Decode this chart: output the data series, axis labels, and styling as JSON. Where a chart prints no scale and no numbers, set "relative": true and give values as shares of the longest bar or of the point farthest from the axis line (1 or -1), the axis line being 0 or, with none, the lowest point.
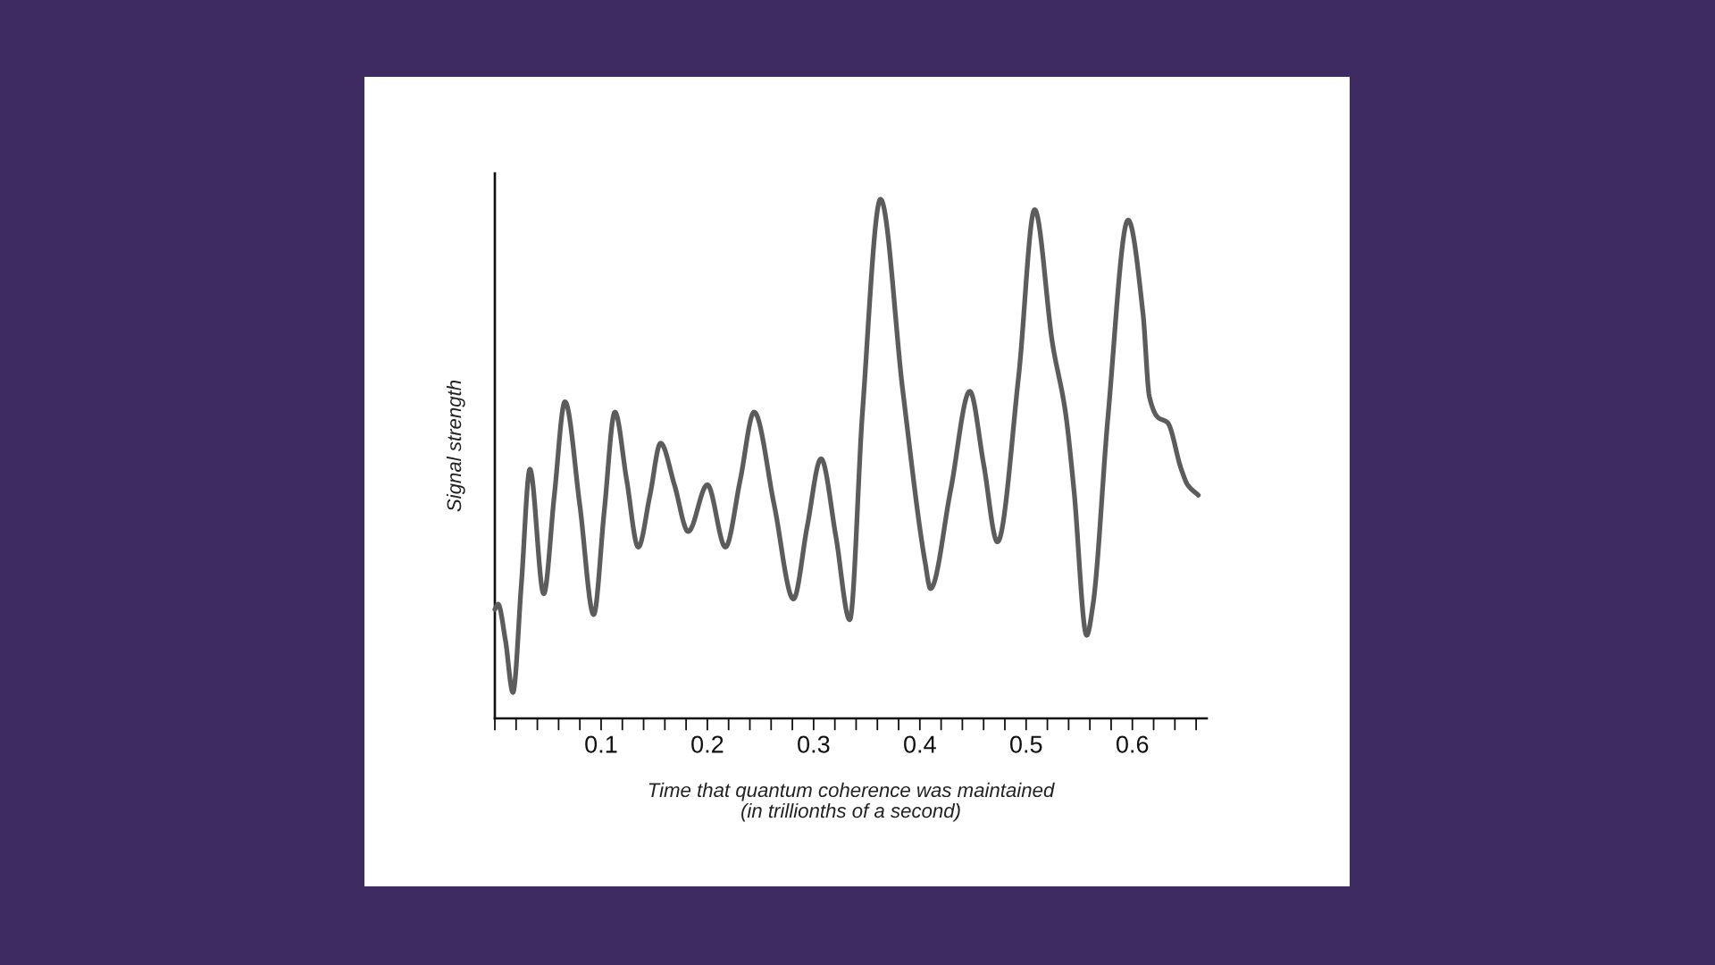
{
  "chart_data": {
    "type": "line",
    "relative": true,
    "xlabel": "Time that quantum coherence was maintained\n(in trillionths of a second)",
    "ylabel": "Signal strength",
    "x": [
      0,
      0.003,
      0.01,
      0.017,
      0.025,
      0.033,
      0.046,
      0.056,
      0.066,
      0.08,
      0.093,
      0.103,
      0.113,
      0.124,
      0.135,
      0.146,
      0.156,
      0.169,
      0.182,
      0.2,
      0.217,
      0.231,
      0.244,
      0.263,
      0.281,
      0.294,
      0.307,
      0.321,
      0.334,
      0.346,
      0.363,
      0.384,
      0.405,
      0.41,
      0.429,
      0.447,
      0.46,
      0.473,
      0.493,
      0.508,
      0.525,
      0.537,
      0.545,
      0.557,
      0.563,
      0.577,
      0.596,
      0.61,
      0.616,
      0.624,
      0.633,
      0.646,
      0.652,
      0.662
    ],
    "series": [
      {
        "color": "#5c5c5c",
        "values": [
          0.21,
          0.22,
          0.15,
          0.05,
          0.26,
          0.48,
          0.24,
          0.43,
          0.61,
          0.41,
          0.2,
          0.4,
          0.59,
          0.46,
          0.33,
          0.43,
          0.53,
          0.45,
          0.36,
          0.45,
          0.33,
          0.46,
          0.59,
          0.41,
          0.23,
          0.37,
          0.5,
          0.35,
          0.19,
          0.59,
          1.0,
          0.63,
          0.3,
          0.25,
          0.44,
          0.63,
          0.49,
          0.34,
          0.66,
          0.98,
          0.72,
          0.59,
          0.44,
          0.16,
          0.22,
          0.58,
          0.96,
          0.78,
          0.62,
          0.58,
          0.57,
          0.48,
          0.45,
          0.43
        ]
      }
    ],
    "xlim": [
      0,
      0.67
    ],
    "xticks": [
      {
        "value": 0,
        "label": null
      },
      {
        "value": 0.02,
        "label": null
      },
      {
        "value": 0.04,
        "label": null
      },
      {
        "value": 0.06,
        "label": null
      },
      {
        "value": 0.08,
        "label": null
      },
      0.1,
      {
        "value": 0.12,
        "label": null
      },
      {
        "value": 0.14,
        "label": null
      },
      {
        "value": 0.16,
        "label": null
      },
      {
        "value": 0.18,
        "label": null
      },
      0.2,
      {
        "value": 0.22,
        "label": null
      },
      {
        "value": 0.24,
        "label": null
      },
      {
        "value": 0.26,
        "label": null
      },
      {
        "value": 0.28,
        "label": null
      },
      0.3,
      {
        "value": 0.32,
        "label": null
      },
      {
        "value": 0.34,
        "label": null
      },
      {
        "value": 0.36,
        "label": null
      },
      {
        "value": 0.38,
        "label": null
      },
      0.4,
      {
        "value": 0.42,
        "label": null
      },
      {
        "value": 0.44,
        "label": null
      },
      {
        "value": 0.46,
        "label": null
      },
      {
        "value": 0.48,
        "label": null
      },
      0.5,
      {
        "value": 0.52,
        "label": null
      },
      {
        "value": 0.54,
        "label": null
      },
      {
        "value": 0.56,
        "label": null
      },
      {
        "value": 0.58,
        "label": null
      },
      0.6,
      {
        "value": 0.62,
        "label": null
      },
      {
        "value": 0.64,
        "label": null
      },
      {
        "value": 0.66,
        "label": null
      }
    ],
    "tick_labels": "x",
    "grid": false,
    "marker": "none",
    "line_style": "solid"
  }
}
